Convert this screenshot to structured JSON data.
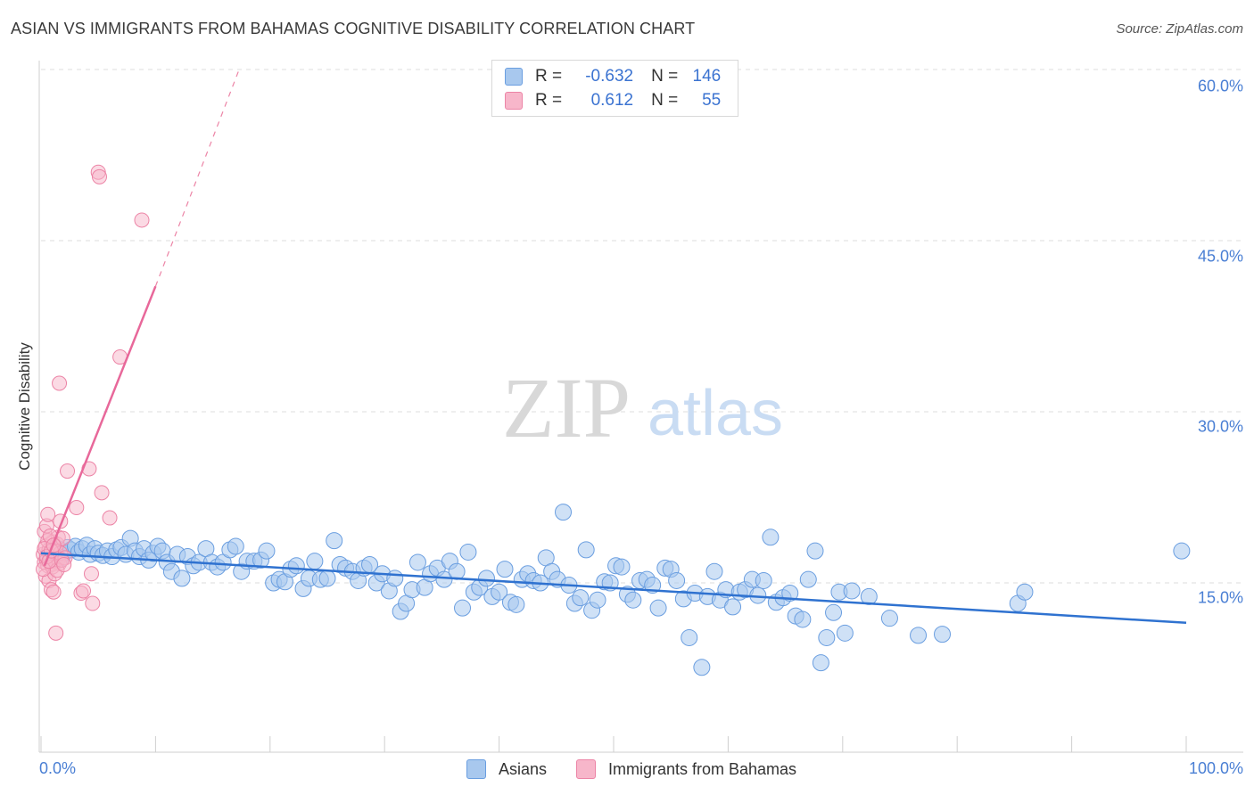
{
  "title": "ASIAN VS IMMIGRANTS FROM BAHAMAS COGNITIVE DISABILITY CORRELATION CHART",
  "source": "Source: ZipAtlas.com",
  "watermark": {
    "zip": "ZIP",
    "atlas": "atlas"
  },
  "colors": {
    "blue_fill": "#a8c8ee",
    "blue_stroke": "#6a9ee0",
    "blue_line": "#2f72d0",
    "pink_fill": "#f7b6ca",
    "pink_stroke": "#ec84a6",
    "pink_line": "#e8689a",
    "accent_text": "#4a7fd4"
  },
  "legend": {
    "r_label": "R =",
    "n_label": "N =",
    "rows": [
      {
        "series": "Asians",
        "r": "-0.632",
        "n": "146"
      },
      {
        "series": "Immigrants from Bahamas",
        "r": "0.612",
        "n": "55"
      }
    ]
  },
  "chart_data": {
    "type": "scatter",
    "title": "ASIAN VS IMMIGRANTS FROM BAHAMAS COGNITIVE DISABILITY CORRELATION CHART",
    "xlabel": "",
    "ylabel": "Cognitive Disability",
    "xlim": [
      0,
      100
    ],
    "ylim": [
      0,
      64
    ],
    "x_tick_labels": [
      "0.0%",
      "100.0%"
    ],
    "y_ticks": [
      15,
      30,
      45,
      60
    ],
    "y_tick_labels": [
      "15.0%",
      "30.0%",
      "45.0%",
      "60.0%"
    ],
    "grid": true,
    "series": [
      {
        "name": "Asians",
        "color": "#a8c8ee",
        "trendline": {
          "x": [
            0,
            100
          ],
          "y": [
            17.6,
            11.5
          ]
        },
        "points": [
          [
            0.8,
            17.4
          ],
          [
            1.2,
            17.8
          ],
          [
            1.5,
            18.0
          ],
          [
            1.8,
            17.2
          ],
          [
            2.0,
            17.6
          ],
          [
            2.3,
            18.1
          ],
          [
            2.6,
            17.9
          ],
          [
            3.0,
            18.2
          ],
          [
            3.3,
            17.7
          ],
          [
            3.6,
            18.0
          ],
          [
            4.0,
            18.3
          ],
          [
            4.3,
            17.5
          ],
          [
            4.7,
            18.0
          ],
          [
            5.0,
            17.6
          ],
          [
            5.4,
            17.4
          ],
          [
            5.8,
            17.8
          ],
          [
            6.2,
            17.3
          ],
          [
            6.6,
            17.9
          ],
          [
            7.0,
            18.1
          ],
          [
            7.4,
            17.5
          ],
          [
            7.8,
            18.9
          ],
          [
            8.2,
            17.8
          ],
          [
            8.6,
            17.3
          ],
          [
            9.0,
            18.0
          ],
          [
            9.4,
            17.0
          ],
          [
            9.8,
            17.6
          ],
          [
            10.2,
            18.2
          ],
          [
            10.6,
            17.8
          ],
          [
            11.0,
            16.8
          ],
          [
            11.4,
            16.0
          ],
          [
            11.9,
            17.5
          ],
          [
            12.3,
            15.4
          ],
          [
            12.8,
            17.3
          ],
          [
            13.3,
            16.5
          ],
          [
            13.8,
            16.8
          ],
          [
            14.4,
            18.0
          ],
          [
            14.9,
            16.8
          ],
          [
            15.4,
            16.4
          ],
          [
            15.9,
            16.8
          ],
          [
            16.5,
            17.9
          ],
          [
            17.0,
            18.2
          ],
          [
            17.5,
            16.0
          ],
          [
            18.0,
            16.9
          ],
          [
            18.6,
            16.9
          ],
          [
            19.2,
            17.0
          ],
          [
            19.7,
            17.8
          ],
          [
            20.3,
            15.0
          ],
          [
            20.8,
            15.3
          ],
          [
            21.3,
            15.1
          ],
          [
            21.8,
            16.2
          ],
          [
            22.3,
            16.5
          ],
          [
            22.9,
            14.5
          ],
          [
            23.4,
            15.4
          ],
          [
            23.9,
            16.9
          ],
          [
            24.4,
            15.3
          ],
          [
            25.0,
            15.4
          ],
          [
            25.6,
            18.7
          ],
          [
            26.1,
            16.6
          ],
          [
            26.6,
            16.3
          ],
          [
            27.2,
            16.0
          ],
          [
            27.7,
            15.2
          ],
          [
            28.2,
            16.3
          ],
          [
            28.7,
            16.6
          ],
          [
            29.3,
            15.0
          ],
          [
            29.8,
            15.8
          ],
          [
            30.4,
            14.3
          ],
          [
            30.9,
            15.4
          ],
          [
            31.4,
            12.5
          ],
          [
            31.9,
            13.2
          ],
          [
            32.4,
            14.4
          ],
          [
            32.9,
            16.8
          ],
          [
            33.5,
            14.6
          ],
          [
            34.0,
            15.8
          ],
          [
            34.6,
            16.3
          ],
          [
            35.2,
            15.3
          ],
          [
            35.7,
            16.9
          ],
          [
            36.3,
            16.0
          ],
          [
            36.8,
            12.8
          ],
          [
            37.3,
            17.7
          ],
          [
            37.8,
            14.2
          ],
          [
            38.3,
            14.6
          ],
          [
            38.9,
            15.4
          ],
          [
            39.4,
            13.8
          ],
          [
            40.0,
            14.2
          ],
          [
            40.5,
            16.2
          ],
          [
            41.0,
            13.3
          ],
          [
            41.5,
            13.1
          ],
          [
            42.0,
            15.3
          ],
          [
            42.5,
            15.8
          ],
          [
            43.0,
            15.2
          ],
          [
            43.6,
            15.0
          ],
          [
            44.1,
            17.2
          ],
          [
            44.6,
            16.0
          ],
          [
            45.1,
            15.3
          ],
          [
            45.6,
            21.2
          ],
          [
            46.1,
            14.8
          ],
          [
            46.6,
            13.2
          ],
          [
            47.1,
            13.7
          ],
          [
            47.6,
            17.9
          ],
          [
            48.1,
            12.6
          ],
          [
            48.6,
            13.5
          ],
          [
            49.2,
            15.1
          ],
          [
            49.7,
            15.0
          ],
          [
            50.2,
            16.5
          ],
          [
            50.7,
            16.4
          ],
          [
            51.2,
            14.0
          ],
          [
            51.7,
            13.5
          ],
          [
            52.3,
            15.2
          ],
          [
            52.9,
            15.3
          ],
          [
            53.4,
            14.8
          ],
          [
            53.9,
            12.8
          ],
          [
            54.5,
            16.3
          ],
          [
            55.0,
            16.2
          ],
          [
            55.5,
            15.2
          ],
          [
            56.1,
            13.6
          ],
          [
            56.6,
            10.2
          ],
          [
            57.1,
            14.1
          ],
          [
            57.7,
            7.6
          ],
          [
            58.2,
            13.8
          ],
          [
            58.8,
            16.0
          ],
          [
            59.3,
            13.5
          ],
          [
            59.8,
            14.4
          ],
          [
            60.4,
            12.9
          ],
          [
            61.0,
            14.2
          ],
          [
            61.5,
            14.4
          ],
          [
            62.1,
            15.3
          ],
          [
            62.6,
            13.9
          ],
          [
            63.1,
            15.2
          ],
          [
            63.7,
            19.0
          ],
          [
            64.2,
            13.3
          ],
          [
            64.8,
            13.7
          ],
          [
            65.4,
            14.1
          ],
          [
            65.9,
            12.1
          ],
          [
            66.5,
            11.8
          ],
          [
            67.0,
            15.3
          ],
          [
            67.6,
            17.8
          ],
          [
            68.1,
            8.0
          ],
          [
            68.6,
            10.2
          ],
          [
            69.2,
            12.4
          ],
          [
            69.7,
            14.2
          ],
          [
            70.2,
            10.6
          ],
          [
            70.8,
            14.3
          ],
          [
            72.3,
            13.8
          ],
          [
            74.1,
            11.9
          ],
          [
            76.6,
            10.4
          ],
          [
            78.7,
            10.5
          ],
          [
            85.3,
            13.2
          ],
          [
            85.9,
            14.2
          ],
          [
            99.6,
            17.8
          ]
        ]
      },
      {
        "name": "Immigrants from Bahamas",
        "color": "#f7b6ca",
        "trendline": {
          "x": [
            0.3,
            10.0
          ],
          "y": [
            16.5,
            41.0
          ],
          "dashed_to": {
            "x": 17.3,
            "y": 60.0
          }
        },
        "points": [
          [
            0.2,
            17.5
          ],
          [
            0.3,
            16.8
          ],
          [
            0.4,
            18.2
          ],
          [
            0.5,
            17.0
          ],
          [
            0.6,
            16.5
          ],
          [
            0.7,
            17.9
          ],
          [
            0.8,
            17.2
          ],
          [
            0.9,
            16.6
          ],
          [
            1.0,
            18.6
          ],
          [
            1.1,
            17.4
          ],
          [
            1.2,
            16.9
          ],
          [
            1.3,
            17.7
          ],
          [
            1.4,
            18.4
          ],
          [
            1.5,
            17.1
          ],
          [
            1.6,
            16.7
          ],
          [
            1.7,
            17.6
          ],
          [
            0.3,
            19.5
          ],
          [
            0.5,
            20.0
          ],
          [
            0.6,
            21.0
          ],
          [
            0.4,
            15.6
          ],
          [
            0.7,
            15.2
          ],
          [
            0.9,
            14.4
          ],
          [
            1.1,
            14.2
          ],
          [
            1.3,
            10.6
          ],
          [
            1.5,
            19.0
          ],
          [
            1.7,
            20.4
          ],
          [
            1.9,
            18.9
          ],
          [
            2.1,
            17.2
          ],
          [
            0.6,
            18.7
          ],
          [
            0.8,
            19.1
          ],
          [
            1.0,
            16.4
          ],
          [
            1.2,
            15.8
          ],
          [
            1.4,
            16.1
          ],
          [
            0.2,
            16.2
          ],
          [
            0.3,
            18.0
          ],
          [
            0.5,
            17.3
          ],
          [
            0.7,
            16.9
          ],
          [
            0.9,
            17.8
          ],
          [
            1.1,
            18.3
          ],
          [
            1.6,
            32.5
          ],
          [
            2.3,
            24.8
          ],
          [
            3.1,
            21.6
          ],
          [
            3.5,
            14.1
          ],
          [
            3.7,
            14.3
          ],
          [
            4.2,
            25.0
          ],
          [
            4.4,
            15.8
          ],
          [
            4.5,
            13.2
          ],
          [
            5.0,
            51.0
          ],
          [
            5.1,
            50.6
          ],
          [
            5.3,
            22.9
          ],
          [
            6.0,
            20.7
          ],
          [
            6.9,
            34.8
          ],
          [
            8.8,
            46.8
          ],
          [
            1.8,
            17.0
          ],
          [
            2.0,
            16.6
          ]
        ]
      }
    ]
  }
}
